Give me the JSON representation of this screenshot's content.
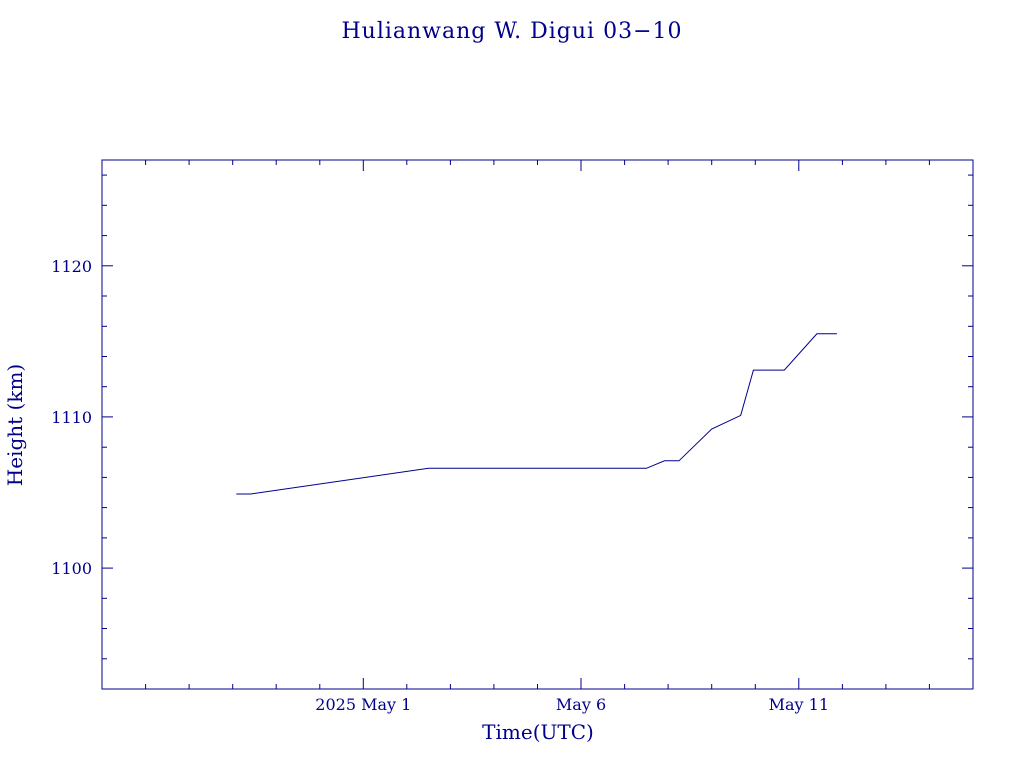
{
  "chart_data": {
    "type": "line",
    "title": "Hulianwang W. Digui 03−10",
    "xlabel": "Time(UTC)",
    "ylabel": "Height (km)",
    "x_axis": {
      "type": "date",
      "range": [
        "2025-04-25T00:00",
        "2025-05-15T00:00"
      ],
      "major_ticks": [
        {
          "date": "2025-05-01T00:00",
          "label": "2025 May  1"
        },
        {
          "date": "2025-05-06T00:00",
          "label": "May  6"
        },
        {
          "date": "2025-05-11T00:00",
          "label": "May 11"
        }
      ],
      "minor_tick_interval_days": 1
    },
    "y_axis": {
      "range": [
        1092,
        1127
      ],
      "major_ticks": [
        1100,
        1110,
        1120
      ],
      "minor_tick_interval": 2
    },
    "grid": false,
    "series": [
      {
        "points": [
          {
            "x": "2025-04-28T02:00",
            "y": 1104.9
          },
          {
            "x": "2025-04-28T10:00",
            "y": 1104.9
          },
          {
            "x": "2025-05-02T12:00",
            "y": 1106.6
          },
          {
            "x": "2025-05-07T12:00",
            "y": 1106.6
          },
          {
            "x": "2025-05-07T22:00",
            "y": 1107.1
          },
          {
            "x": "2025-05-08T06:00",
            "y": 1107.1
          },
          {
            "x": "2025-05-09T00:00",
            "y": 1109.2
          },
          {
            "x": "2025-05-09T16:00",
            "y": 1110.1
          },
          {
            "x": "2025-05-09T23:00",
            "y": 1113.1
          },
          {
            "x": "2025-05-10T16:00",
            "y": 1113.1
          },
          {
            "x": "2025-05-11T10:00",
            "y": 1115.5
          },
          {
            "x": "2025-05-11T21:00",
            "y": 1115.5
          }
        ]
      }
    ]
  }
}
